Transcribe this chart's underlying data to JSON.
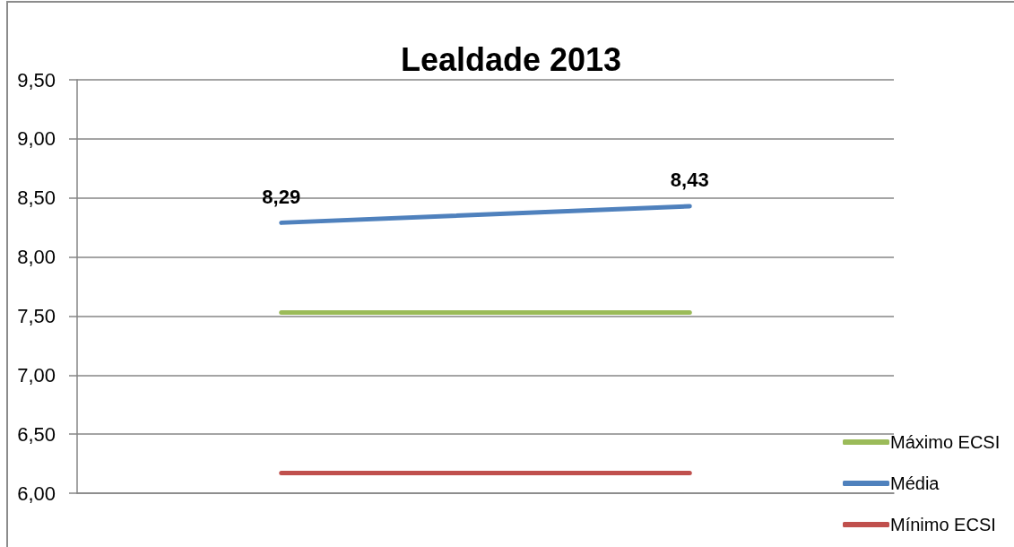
{
  "chart_data": {
    "type": "line",
    "title": "Lealdade 2013",
    "categories": [
      null,
      null
    ],
    "series": [
      {
        "name": "Máximo ECSI",
        "color": "#9bbb59",
        "values": [
          7.53,
          7.53
        ]
      },
      {
        "name": "Média",
        "color": "#4f81bd",
        "values": [
          8.29,
          8.43
        ],
        "value_labels": [
          "8,29",
          "8,43"
        ]
      },
      {
        "name": "Mínimo ECSI",
        "color": "#c0504d",
        "values": [
          6.17,
          6.17
        ]
      }
    ],
    "ylim": [
      6,
      9.5
    ],
    "yticks": [
      {
        "value": 6,
        "label": "6,00"
      },
      {
        "value": 6.5,
        "label": "6,50"
      },
      {
        "value": 7,
        "label": "7,00"
      },
      {
        "value": 7.5,
        "label": "7,50"
      },
      {
        "value": 8,
        "label": "8,00"
      },
      {
        "value": 8.5,
        "label": "8,50"
      },
      {
        "value": 9,
        "label": "9,00"
      },
      {
        "value": 9.5,
        "label": "9,50"
      }
    ],
    "grid": "y",
    "legend": "bottom right",
    "marker": "none",
    "line_style": "solid"
  }
}
